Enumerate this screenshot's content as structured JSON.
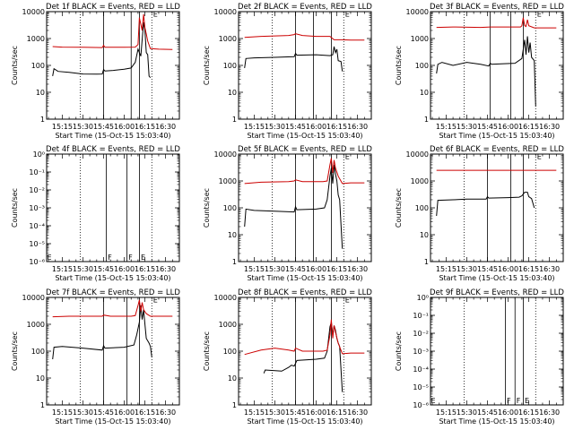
{
  "figure": {
    "x_axis_label": "Start Time (15-Oct-15 15:03:40)",
    "y_axis_label": "Counts/sec",
    "x_ticks": [
      "15:15",
      "15:30",
      "15:45",
      "16:00",
      "16:15",
      "16:30"
    ],
    "y_ticks_log": [
      "1",
      "10",
      "100",
      "1000",
      "10000"
    ],
    "y_ticks_exp": [
      "10⁻⁶",
      "10⁻⁵",
      "10⁻⁴",
      "10⁻³",
      "10⁻²",
      "10⁻¹",
      "10⁰"
    ],
    "series_colors": {
      "events": "#000000",
      "lld": "#cc0000",
      "frame": "#000000"
    }
  },
  "chart_data": [
    {
      "type": "line",
      "title": "Det 1f BLACK = Events, RED = LLD",
      "scale": "log",
      "ylim": [
        1,
        10000
      ],
      "xlim": [
        "15:03:40",
        "16:40:00"
      ],
      "vlines_dotted": [
        "15:28",
        "16:20"
      ],
      "vlines_solid": [
        "15:45",
        "16:05",
        "16:11"
      ],
      "markers": [
        {
          "text": "E",
          "x": "16:21",
          "y": 9000
        }
      ],
      "series": [
        {
          "name": "BLACK = Events",
          "color": "black",
          "x": [
            "15:08",
            "15:09",
            "15:12",
            "15:20",
            "15:30",
            "15:40",
            "15:44",
            "15:45",
            "15:46",
            "15:52",
            "16:00",
            "16:05",
            "16:08",
            "16:10",
            "16:12",
            "16:14",
            "16:15",
            "16:16",
            "16:17",
            "16:18",
            "16:19"
          ],
          "y": [
            40,
            75,
            60,
            55,
            48,
            47,
            48,
            70,
            62,
            65,
            72,
            80,
            130,
            400,
            220,
            4000,
            2000,
            300,
            250,
            40,
            35
          ]
        },
        {
          "name": "RED = LLD",
          "color": "red",
          "x": [
            "15:08",
            "15:15",
            "15:30",
            "15:44",
            "15:45",
            "15:46",
            "16:00",
            "16:08",
            "16:10",
            "16:11",
            "16:13",
            "16:14",
            "16:15",
            "16:16",
            "16:17",
            "16:19",
            "16:25",
            "16:35"
          ],
          "y": [
            500,
            480,
            470,
            460,
            560,
            470,
            470,
            480,
            600,
            6000,
            2000,
            8000,
            2500,
            1500,
            800,
            420,
            400,
            390
          ]
        }
      ]
    },
    {
      "type": "line",
      "title": "Det 2f BLACK = Events, RED = LLD",
      "scale": "log",
      "ylim": [
        1,
        10000
      ],
      "xlim": [
        "15:03:40",
        "16:40:00"
      ],
      "vlines_dotted": [
        "15:28",
        "16:20"
      ],
      "vlines_solid": [
        "15:45",
        "15:58",
        "16:11"
      ],
      "markers": [
        {
          "text": "E",
          "x": "16:21",
          "y": 9000
        }
      ],
      "series": [
        {
          "name": "BLACK = Events",
          "color": "black",
          "x": [
            "15:08",
            "15:09",
            "15:15",
            "15:30",
            "15:44",
            "15:45",
            "15:46",
            "16:00",
            "16:05",
            "16:10",
            "16:12",
            "16:13",
            "16:14",
            "16:15",
            "16:16",
            "16:18",
            "16:19"
          ],
          "y": [
            80,
            180,
            190,
            200,
            210,
            280,
            240,
            250,
            240,
            230,
            250,
            500,
            300,
            400,
            150,
            140,
            60
          ]
        },
        {
          "name": "RED = LLD",
          "color": "red",
          "x": [
            "15:08",
            "15:20",
            "15:40",
            "15:44",
            "15:45",
            "15:50",
            "16:00",
            "16:10",
            "16:13",
            "16:19",
            "16:25",
            "16:35"
          ],
          "y": [
            1100,
            1200,
            1300,
            1400,
            1500,
            1300,
            1200,
            1200,
            900,
            900,
            880,
            880
          ]
        }
      ]
    },
    {
      "type": "line",
      "title": "Det 3f BLACK = Events, RED = LLD",
      "scale": "log",
      "ylim": [
        1,
        10000
      ],
      "xlim": [
        "15:03:40",
        "16:40:00"
      ],
      "vlines_dotted": [
        "15:28",
        "16:20"
      ],
      "vlines_solid": [
        "15:47",
        "16:02",
        "16:11"
      ],
      "markers": [
        {
          "text": "E",
          "x": "16:21",
          "y": 9000
        }
      ],
      "series": [
        {
          "name": "BLACK = Events",
          "color": "black",
          "x": [
            "15:08",
            "15:09",
            "15:12",
            "15:20",
            "15:30",
            "15:40",
            "15:46",
            "15:47",
            "15:48",
            "15:55",
            "16:05",
            "16:10",
            "16:12",
            "16:13",
            "16:14",
            "16:15",
            "16:16",
            "16:17",
            "16:19",
            "16:20"
          ],
          "y": [
            50,
            110,
            130,
            100,
            130,
            110,
            95,
            120,
            110,
            115,
            120,
            180,
            900,
            250,
            1200,
            300,
            700,
            200,
            150,
            3
          ]
        },
        {
          "name": "RED = LLD",
          "color": "red",
          "x": [
            "15:08",
            "15:20",
            "15:40",
            "15:47",
            "16:00",
            "16:09",
            "16:10",
            "16:11",
            "16:12",
            "16:13",
            "16:14",
            "16:15",
            "16:19",
            "16:25",
            "16:35"
          ],
          "y": [
            2600,
            2700,
            2600,
            2700,
            2700,
            2700,
            3000,
            6000,
            3000,
            2800,
            5000,
            3000,
            2500,
            2500,
            2500
          ]
        }
      ]
    },
    {
      "type": "line",
      "title": "Det 4f BLACK = Events, RED = LLD",
      "scale": "log",
      "ylim": [
        1e-06,
        1
      ],
      "xlim": [
        "15:03:40",
        "16:40:00"
      ],
      "vlines_dotted": [
        "15:28",
        "16:20"
      ],
      "vlines_solid": [
        "15:47",
        "16:02",
        "16:11"
      ],
      "markers": [
        {
          "text": "E",
          "x": "15:04",
          "y": 2e-06
        },
        {
          "text": "F",
          "x": "15:48",
          "y": 2e-06
        },
        {
          "text": "F",
          "x": "16:03",
          "y": 2e-06
        },
        {
          "text": "E",
          "x": "16:12",
          "y": 2e-06
        }
      ],
      "series": []
    },
    {
      "type": "line",
      "title": "Det 5f BLACK = Events, RED = LLD",
      "scale": "log",
      "ylim": [
        1,
        10000
      ],
      "xlim": [
        "15:03:40",
        "16:40:00"
      ],
      "vlines_dotted": [
        "15:28",
        "16:20"
      ],
      "vlines_solid": [
        "15:45",
        "15:58",
        "16:11"
      ],
      "markers": [
        {
          "text": "E",
          "x": "16:21",
          "y": 9000
        }
      ],
      "series": [
        {
          "name": "BLACK = Events",
          "color": "black",
          "x": [
            "15:08",
            "15:09",
            "15:15",
            "15:30",
            "15:44",
            "15:45",
            "15:46",
            "16:00",
            "16:06",
            "16:08",
            "16:10",
            "16:11",
            "16:12",
            "16:13",
            "16:14",
            "16:15",
            "16:16",
            "16:17",
            "16:19"
          ],
          "y": [
            20,
            90,
            80,
            75,
            70,
            110,
            85,
            90,
            100,
            200,
            1500,
            3000,
            800,
            4000,
            1800,
            1000,
            300,
            200,
            3
          ]
        },
        {
          "name": "RED = LLD",
          "color": "red",
          "x": [
            "15:08",
            "15:20",
            "15:40",
            "15:44",
            "15:45",
            "15:50",
            "16:05",
            "16:08",
            "16:10",
            "16:11",
            "16:12",
            "16:13",
            "16:14",
            "16:16",
            "16:19",
            "16:25",
            "16:35"
          ],
          "y": [
            800,
            900,
            950,
            1000,
            1100,
            950,
            950,
            1000,
            4000,
            7000,
            2000,
            6000,
            3000,
            1500,
            800,
            850,
            850
          ]
        }
      ]
    },
    {
      "type": "line",
      "title": "Det 6f BLACK = Events, RED = LLD",
      "scale": "log",
      "ylim": [
        1,
        10000
      ],
      "xlim": [
        "15:03:40",
        "16:40:00"
      ],
      "vlines_dotted": [
        "15:28",
        "16:20"
      ],
      "vlines_solid": [
        "15:45",
        "16:02",
        "16:11"
      ],
      "markers": [
        {
          "text": "E",
          "x": "16:21",
          "y": 9000
        }
      ],
      "series": [
        {
          "name": "BLACK = Events",
          "color": "black",
          "x": [
            "15:08",
            "15:09",
            "15:20",
            "15:30",
            "15:44",
            "15:45",
            "15:46",
            "16:00",
            "16:08",
            "16:10",
            "16:12",
            "16:14",
            "16:15",
            "16:17",
            "16:19"
          ],
          "y": [
            50,
            190,
            200,
            210,
            210,
            260,
            230,
            240,
            250,
            280,
            380,
            380,
            260,
            220,
            100
          ]
        },
        {
          "name": "RED = LLD",
          "color": "red",
          "x": [
            "15:08",
            "16:19",
            "16:35"
          ],
          "y": [
            2500,
            2500,
            2500
          ]
        }
      ]
    },
    {
      "type": "line",
      "title": "Det 7f BLACK = Events, RED = LLD",
      "scale": "log",
      "ylim": [
        1,
        10000
      ],
      "xlim": [
        "15:03:40",
        "16:40:00"
      ],
      "vlines_dotted": [
        "15:28",
        "16:20"
      ],
      "vlines_solid": [
        "15:45",
        "16:02",
        "16:11"
      ],
      "markers": [
        {
          "text": "E",
          "x": "16:21",
          "y": 9000
        }
      ],
      "series": [
        {
          "name": "BLACK = Events",
          "color": "black",
          "x": [
            "15:08",
            "15:09",
            "15:15",
            "15:30",
            "15:44",
            "15:45",
            "15:46",
            "16:00",
            "16:07",
            "16:09",
            "16:11",
            "16:12",
            "16:13",
            "16:14",
            "16:15",
            "16:16",
            "16:18",
            "16:19",
            "16:20"
          ],
          "y": [
            50,
            140,
            150,
            130,
            110,
            160,
            130,
            140,
            170,
            400,
            1200,
            5000,
            1500,
            3500,
            1000,
            300,
            200,
            150,
            60
          ]
        },
        {
          "name": "RED = LLD",
          "color": "red",
          "x": [
            "15:08",
            "15:20",
            "15:40",
            "15:44",
            "15:45",
            "15:50",
            "16:05",
            "16:08",
            "16:10",
            "16:11",
            "16:12",
            "16:13",
            "16:14",
            "16:16",
            "16:19",
            "16:25",
            "16:35"
          ],
          "y": [
            1900,
            2000,
            2000,
            2000,
            2200,
            2000,
            2000,
            2100,
            5000,
            8000,
            3000,
            6500,
            3500,
            2500,
            2000,
            2000,
            2000
          ]
        }
      ]
    },
    {
      "type": "line",
      "title": "Det 8f BLACK = Events, RED = LLD",
      "scale": "log",
      "ylim": [
        1,
        10000
      ],
      "xlim": [
        "15:03:40",
        "16:40:00"
      ],
      "vlines_dotted": [
        "15:28",
        "16:20"
      ],
      "vlines_solid": [
        "15:45",
        "15:58",
        "16:11"
      ],
      "markers": [
        {
          "text": "E",
          "x": "16:21",
          "y": 9000
        }
      ],
      "series": [
        {
          "name": "BLACK = Events",
          "color": "black",
          "x": [
            "15:22",
            "15:23",
            "15:35",
            "15:40",
            "15:42",
            "15:44",
            "15:45",
            "15:46",
            "16:00",
            "16:06",
            "16:08",
            "16:10",
            "16:11",
            "16:12",
            "16:13",
            "16:14",
            "16:15",
            "16:16",
            "16:17",
            "16:19"
          ],
          "y": [
            15,
            20,
            18,
            25,
            30,
            28,
            35,
            45,
            50,
            55,
            100,
            800,
            1200,
            400,
            900,
            600,
            300,
            200,
            150,
            3
          ]
        },
        {
          "name": "RED = LLD",
          "color": "red",
          "x": [
            "15:08",
            "15:20",
            "15:30",
            "15:40",
            "15:44",
            "15:45",
            "15:50",
            "16:05",
            "16:08",
            "16:10",
            "16:11",
            "16:12",
            "16:13",
            "16:14",
            "16:16",
            "16:19",
            "16:25",
            "16:35"
          ],
          "y": [
            75,
            110,
            130,
            110,
            100,
            130,
            100,
            100,
            110,
            400,
            1500,
            300,
            900,
            500,
            200,
            80,
            85,
            85
          ]
        }
      ]
    },
    {
      "type": "line",
      "title": "Det 9f BLACK = Events, RED = LLD",
      "scale": "log",
      "ylim": [
        1e-06,
        1
      ],
      "xlim": [
        "15:03:40",
        "16:40:00"
      ],
      "vlines_dotted": [
        "15:28",
        "16:20"
      ],
      "vlines_solid": [
        "15:58",
        "16:05",
        "16:11"
      ],
      "markers": [
        {
          "text": "E",
          "x": "15:04",
          "y": 2e-06
        },
        {
          "text": "F",
          "x": "15:59",
          "y": 2e-06
        },
        {
          "text": "F",
          "x": "16:06",
          "y": 2e-06
        },
        {
          "text": "E",
          "x": "16:12",
          "y": 2e-06
        }
      ],
      "series": []
    }
  ]
}
